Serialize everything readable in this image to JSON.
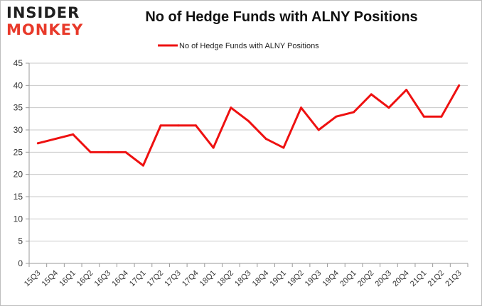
{
  "logo": {
    "line1": "INSIDER",
    "line2": "MONKEY"
  },
  "colors": {
    "series": "#ee1111",
    "logo_dark": "#1f1f1f",
    "logo_red": "#e8392a",
    "grid": "#c8c8c8",
    "axis": "#9a9a9a"
  },
  "chart_data": {
    "type": "line",
    "title": "No of Hedge Funds with ALNY Positions",
    "xlabel": "",
    "ylabel": "",
    "ylim": [
      0,
      45
    ],
    "yticks": [
      0,
      5,
      10,
      15,
      20,
      25,
      30,
      35,
      40,
      45
    ],
    "grid": true,
    "legend_position": "top-center",
    "categories": [
      "15Q3",
      "15Q4",
      "16Q1",
      "16Q2",
      "16Q3",
      "16Q4",
      "17Q1",
      "17Q2",
      "17Q3",
      "17Q4",
      "18Q1",
      "18Q2",
      "18Q3",
      "18Q4",
      "19Q1",
      "19Q2",
      "19Q3",
      "19Q4",
      "20Q1",
      "20Q2",
      "20Q3",
      "20Q4",
      "21Q1",
      "21Q2",
      "21Q3"
    ],
    "series": [
      {
        "name": "No of Hedge Funds with ALNY Positions",
        "color": "#ee1111",
        "values": [
          27,
          28,
          29,
          25,
          25,
          25,
          22,
          31,
          31,
          31,
          26,
          35,
          32,
          28,
          26,
          35,
          30,
          33,
          34,
          38,
          35,
          39,
          33,
          33,
          40
        ]
      }
    ]
  }
}
